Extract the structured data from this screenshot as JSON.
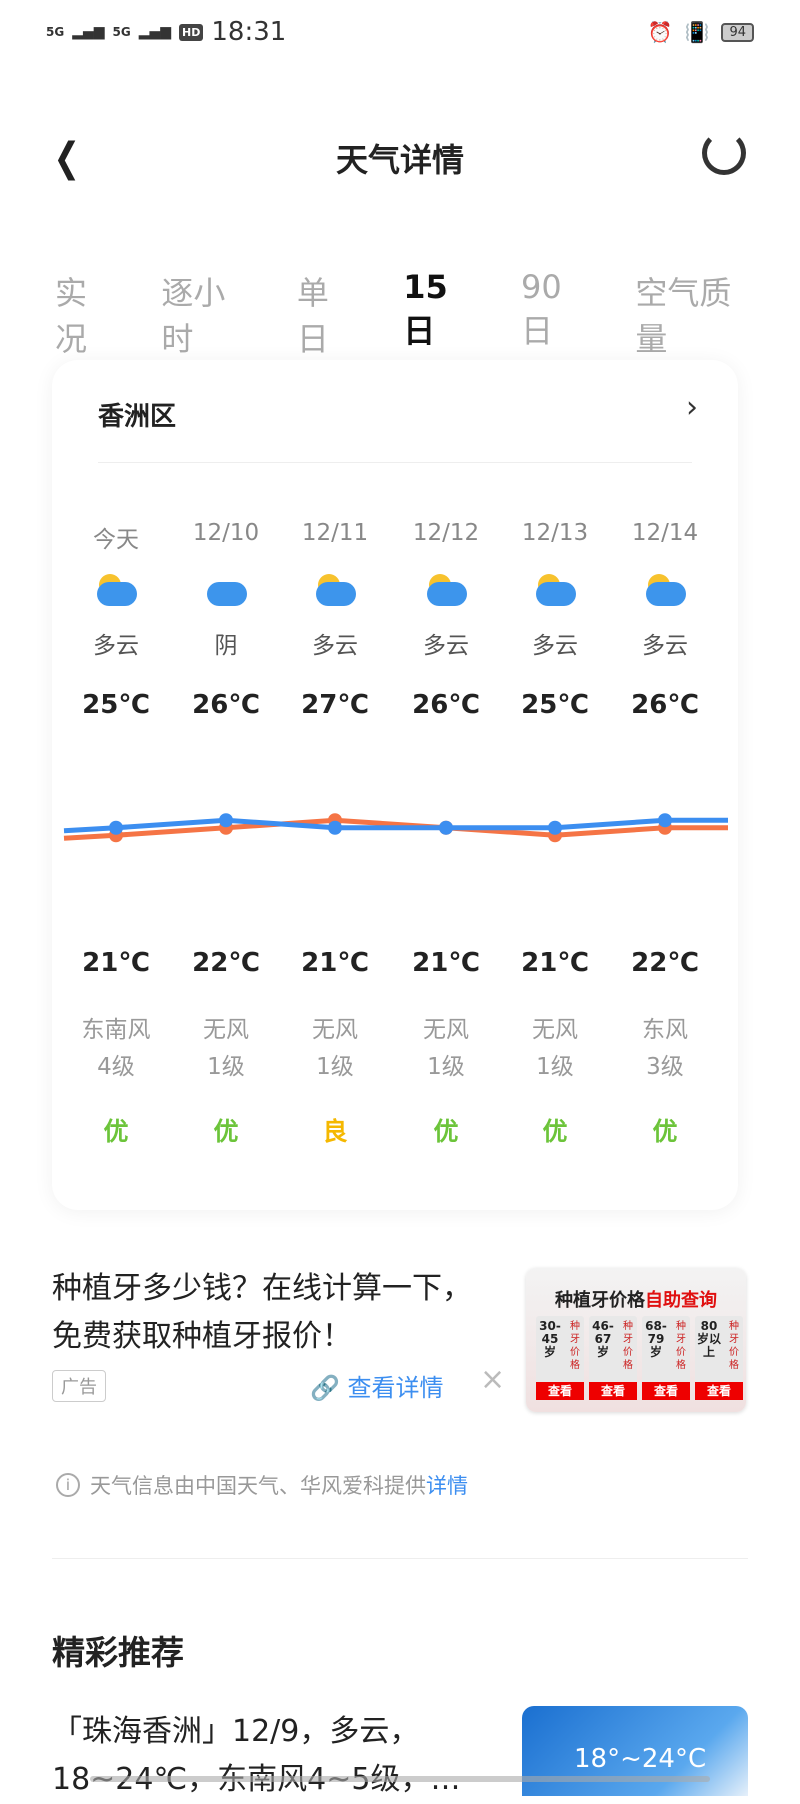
{
  "status_bar": {
    "signal1": "5G",
    "signal2": "5G",
    "hd": "HD",
    "time": "18:31",
    "battery": "94"
  },
  "header": {
    "title": "天气详情"
  },
  "tabs": [
    {
      "label": "实况"
    },
    {
      "label": "逐小时"
    },
    {
      "label": "单日"
    },
    {
      "label": "15日",
      "active": true
    },
    {
      "label": "90日"
    },
    {
      "label": "空气质量"
    }
  ],
  "card": {
    "location": "香洲区",
    "days": [
      {
        "date": "今天",
        "icon": "partly-cloudy",
        "cond": "多云",
        "high": "25℃",
        "low": "21℃",
        "wind_dir": "东南风",
        "wind_lvl": "4级",
        "aqi": "优"
      },
      {
        "date": "12/10",
        "icon": "cloudy",
        "cond": "阴",
        "high": "26℃",
        "low": "22℃",
        "wind_dir": "无风",
        "wind_lvl": "1级",
        "aqi": "优"
      },
      {
        "date": "12/11",
        "icon": "partly-cloudy",
        "cond": "多云",
        "high": "27℃",
        "low": "21℃",
        "wind_dir": "无风",
        "wind_lvl": "1级",
        "aqi": "良"
      },
      {
        "date": "12/12",
        "icon": "partly-cloudy",
        "cond": "多云",
        "high": "26℃",
        "low": "21℃",
        "wind_dir": "无风",
        "wind_lvl": "1级",
        "aqi": "优"
      },
      {
        "date": "12/13",
        "icon": "partly-cloudy",
        "cond": "多云",
        "high": "25℃",
        "low": "21℃",
        "wind_dir": "无风",
        "wind_lvl": "1级",
        "aqi": "优"
      },
      {
        "date": "12/14",
        "icon": "partly-cloudy",
        "cond": "多云",
        "high": "26℃",
        "low": "22℃",
        "wind_dir": "东风",
        "wind_lvl": "3级",
        "aqi": "优"
      }
    ],
    "highs": [
      25,
      26,
      27,
      26,
      25,
      26
    ],
    "lows": [
      21,
      22,
      21,
      21,
      21,
      22
    ],
    "colors": {
      "high": "#f57445",
      "low": "#3c8ef0",
      "aqi_good": "#6cc43a",
      "aqi_moderate": "#f5b800"
    }
  },
  "ad": {
    "text": "种植牙多少钱？在线计算一下，免费获取种植牙报价！",
    "tag": "广告",
    "link": "查看详情",
    "close": "×",
    "image": {
      "title_a": "种植牙价格",
      "title_b": "自助查询",
      "boxes": [
        {
          "age": "30-45岁",
          "label": "种牙价格",
          "btn": "查看"
        },
        {
          "age": "46-67岁",
          "label": "种牙价格",
          "btn": "查看"
        },
        {
          "age": "68-79岁",
          "label": "种牙价格",
          "btn": "查看"
        },
        {
          "age": "80岁以上",
          "label": "种牙价格",
          "btn": "查看"
        }
      ]
    }
  },
  "info": {
    "text": "天气信息由中国天气、华风爱科提供",
    "link": "详情"
  },
  "recommend": {
    "title": "精彩推荐",
    "article": "「珠海香洲」12/9，多云，18~24℃，东南风4~5级，…",
    "image_text": "18°~24°C"
  }
}
